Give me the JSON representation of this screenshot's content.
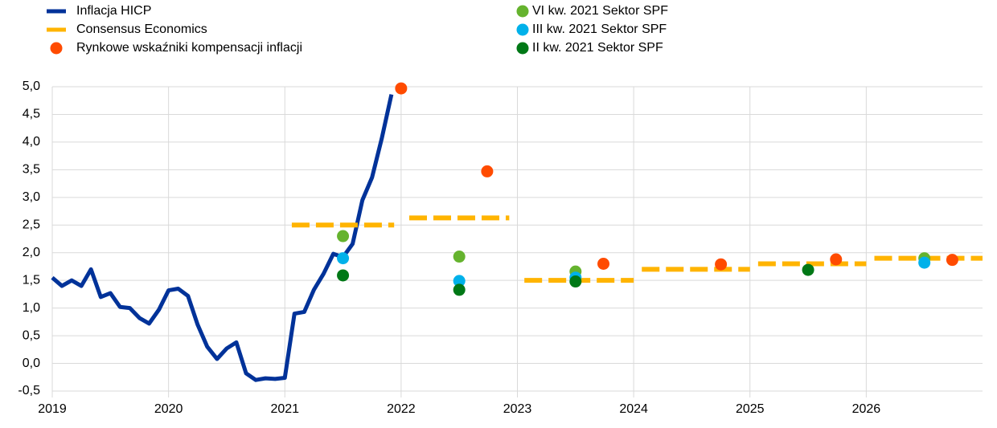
{
  "chart_data": {
    "type": "line",
    "xlim": [
      2019,
      2027
    ],
    "xticks": [
      2019,
      2020,
      2021,
      2022,
      2023,
      2024,
      2025,
      2026
    ],
    "ylim": [
      -0.5,
      5
    ],
    "yticks": [
      {
        "value": -0.5,
        "label": "-0,5"
      },
      {
        "value": 0,
        "label": "0,0"
      },
      {
        "value": 0.5,
        "label": "0,5"
      },
      {
        "value": 1,
        "label": "1,0"
      },
      {
        "value": 1.5,
        "label": "1,5"
      },
      {
        "value": 2,
        "label": "2,0"
      },
      {
        "value": 2.5,
        "label": "2,5"
      },
      {
        "value": 3,
        "label": "3,0"
      },
      {
        "value": 3.5,
        "label": "3,5"
      },
      {
        "value": 4,
        "label": "4,0"
      },
      {
        "value": 4.5,
        "label": "4,5"
      },
      {
        "value": 5,
        "label": "5,0"
      }
    ],
    "grid": true,
    "series": [
      {
        "name": "Inflacja HICP",
        "type": "line",
        "dash": false,
        "color": "#003299",
        "x": [
          2019.0,
          2019.083,
          2019.167,
          2019.25,
          2019.333,
          2019.417,
          2019.5,
          2019.583,
          2019.667,
          2019.75,
          2019.833,
          2019.917,
          2020.0,
          2020.083,
          2020.167,
          2020.25,
          2020.333,
          2020.417,
          2020.5,
          2020.583,
          2020.667,
          2020.75,
          2020.833,
          2020.917,
          2021.0,
          2021.083,
          2021.167,
          2021.25,
          2021.333,
          2021.417,
          2021.5,
          2021.583,
          2021.667,
          2021.75,
          2021.833,
          2021.917
        ],
        "values": [
          1.55,
          1.4,
          1.5,
          1.4,
          1.7,
          1.2,
          1.27,
          1.02,
          1.0,
          0.82,
          0.72,
          0.97,
          1.32,
          1.35,
          1.22,
          0.7,
          0.3,
          0.08,
          0.27,
          0.38,
          -0.18,
          -0.3,
          -0.27,
          -0.28,
          -0.26,
          0.9,
          0.93,
          1.33,
          1.62,
          1.98,
          1.92,
          2.16,
          2.95,
          3.36,
          4.06,
          4.86
        ]
      },
      {
        "name": "Consensus Economics",
        "type": "line",
        "dash": true,
        "color": "#ffb400",
        "x": [
          2021.06,
          2021.94,
          2022.0,
          2022.07,
          2022.93,
          2023.0,
          2023.06,
          2024.0,
          2024.03,
          2024.07,
          2025.0,
          2025.03,
          2025.07,
          2026.0,
          2026.03,
          2026.07,
          2027.0
        ],
        "values": [
          2.5,
          2.5,
          null,
          2.63,
          2.63,
          null,
          1.5,
          1.5,
          null,
          1.7,
          1.7,
          null,
          1.8,
          1.8,
          null,
          1.9,
          1.9
        ]
      },
      {
        "name": "Rynkowe wskaźniki  kompensacji inflacji",
        "type": "scatter",
        "color": "#ff4b00",
        "x": [
          2022.0,
          2022.74,
          2023.74,
          2024.75,
          2025.74,
          2026.74
        ],
        "values": [
          4.97,
          3.47,
          1.8,
          1.79,
          1.88,
          1.87
        ]
      },
      {
        "name": "VI kw. 2021 Sektor SPF",
        "type": "scatter",
        "color": "#65b32e",
        "x": [
          2021.5,
          2022.5,
          2023.5,
          2026.5
        ],
        "values": [
          2.3,
          1.93,
          1.66,
          1.9
        ]
      },
      {
        "name": "III kw. 2021 Sektor SPF",
        "type": "scatter",
        "color": "#00b1ea",
        "x": [
          2021.5,
          2022.5,
          2023.5,
          2026.5
        ],
        "values": [
          1.9,
          1.49,
          1.55,
          1.82
        ]
      },
      {
        "name": "II kw. 2021 Sektor SPF",
        "type": "scatter",
        "color": "#007816",
        "x": [
          2021.5,
          2022.5,
          2023.5,
          2025.5
        ],
        "values": [
          1.59,
          1.33,
          1.48,
          1.69
        ]
      }
    ]
  }
}
